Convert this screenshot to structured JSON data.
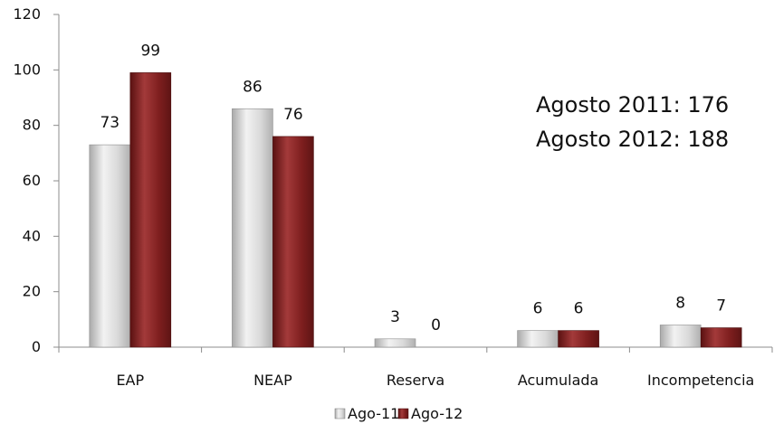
{
  "chart_data": {
    "type": "bar",
    "categories": [
      "EAP",
      "NEAP",
      "Reserva",
      "Acumulada",
      "Incompetencia"
    ],
    "series": [
      {
        "name": "Ago-11",
        "values": [
          73,
          86,
          3,
          6,
          8
        ],
        "data_labels": [
          "73",
          "86",
          "3",
          "6",
          "8"
        ],
        "color": "#d9d9d9"
      },
      {
        "name": "Ago-12",
        "values": [
          99,
          76,
          0,
          6,
          7
        ],
        "data_labels": [
          "99",
          "76",
          "0",
          "6",
          "7"
        ],
        "color": "#7f1f1f"
      }
    ],
    "ylim": [
      0,
      120
    ],
    "yticks": [
      0,
      20,
      40,
      60,
      80,
      100,
      120
    ],
    "grid": false,
    "legend_position": "bottom",
    "annotations": [
      "Agosto 2011: 176",
      "Agosto 2012: 188"
    ]
  }
}
